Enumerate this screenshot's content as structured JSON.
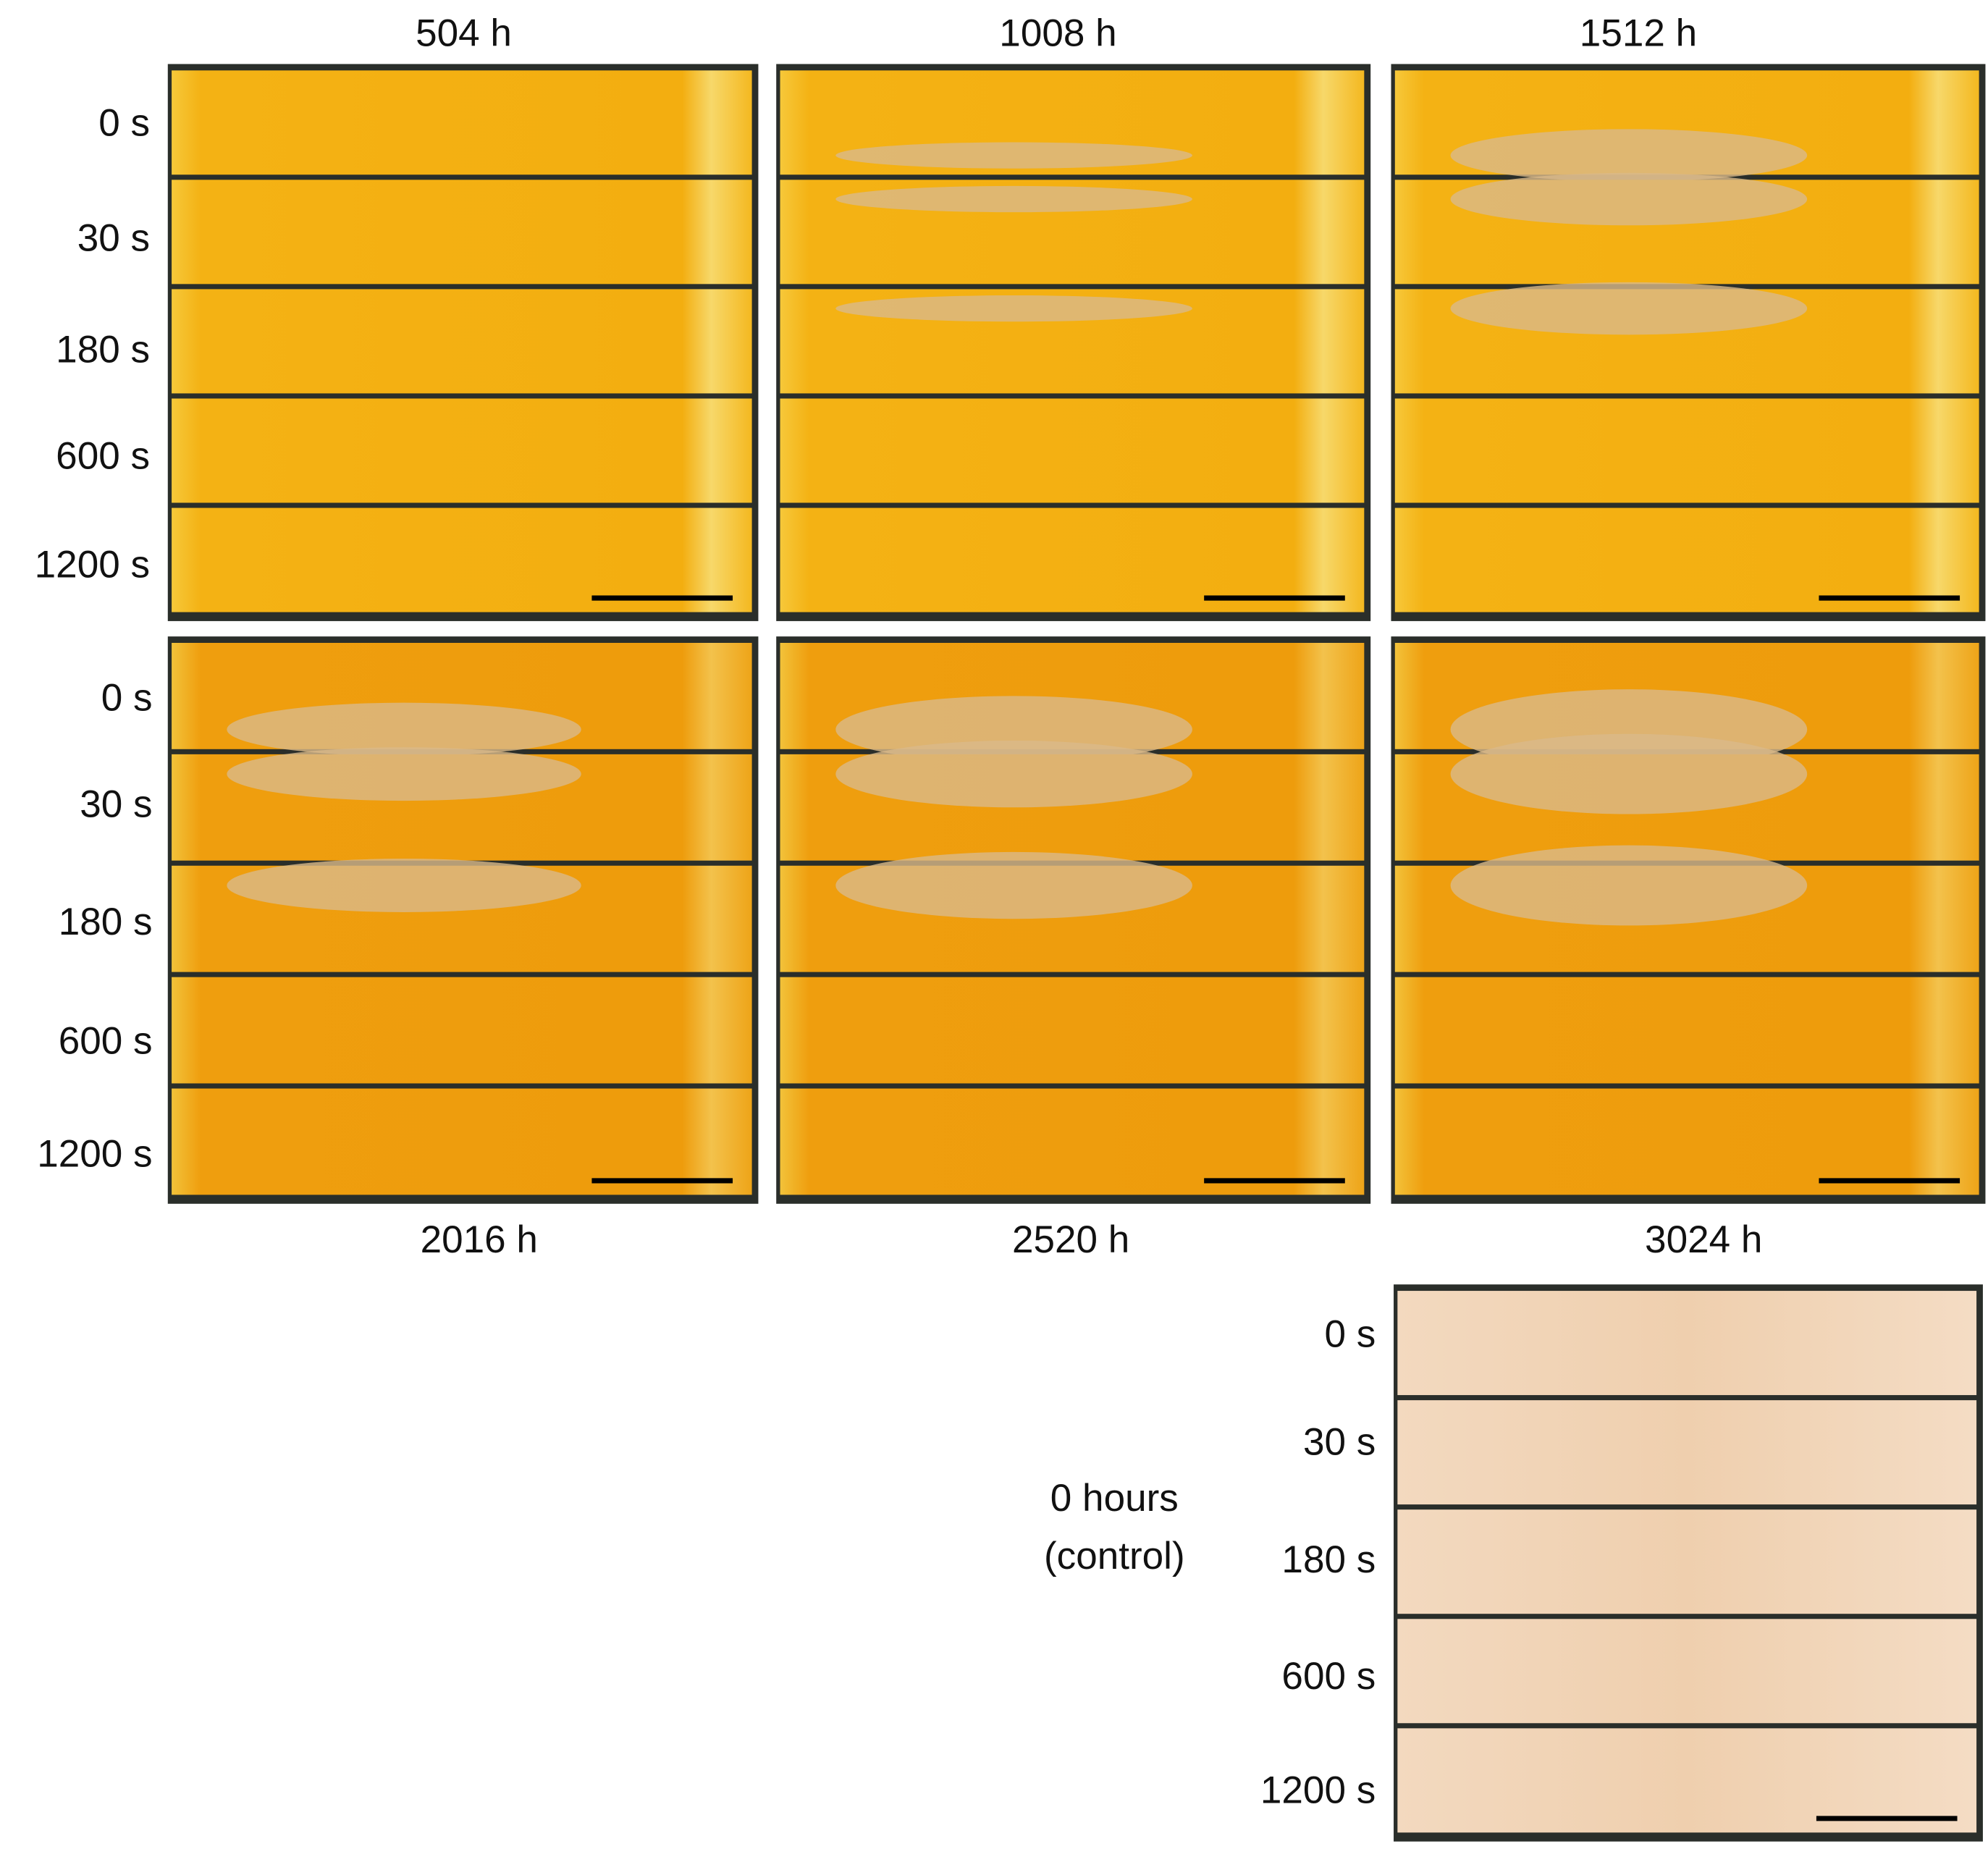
{
  "top_labels": [
    "504 h",
    "1008 h",
    "1512 h"
  ],
  "bottom_labels": [
    "2016 h",
    "2520 h",
    "3024 h"
  ],
  "row_labels": [
    "0 s",
    "30 s",
    "180 s",
    "600 s",
    "1200 s"
  ],
  "control_label": [
    "0 hours",
    "(control)"
  ]
}
